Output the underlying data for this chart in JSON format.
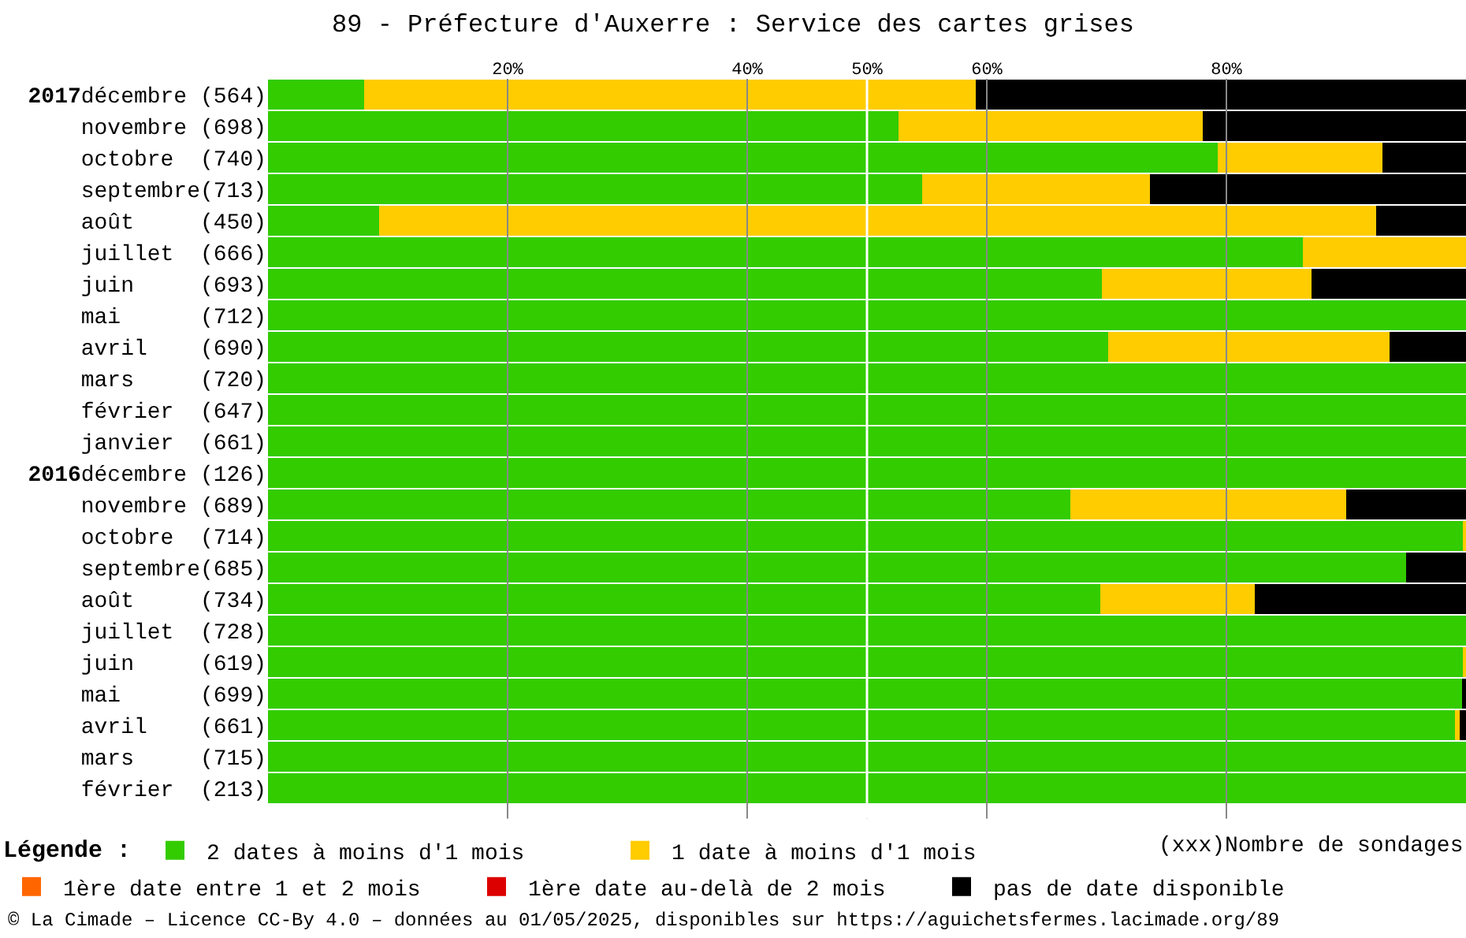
{
  "chart_data": {
    "type": "bar",
    "orientation": "horizontal",
    "stacked": true,
    "title": "89 - Préfecture d'Auxerre : Service des cartes grises",
    "categories": [
      "2017décembre (564)",
      "novembre (698)",
      "octobre (740)",
      "septembre(713)",
      "août (450)",
      "juillet (666)",
      "juin (693)",
      "mai (712)",
      "avril (690)",
      "mars (720)",
      "février (647)",
      "janvier (661)",
      "2016décembre (126)",
      "novembre (689)",
      "octobre (714)",
      "septembre(685)",
      "août (734)",
      "juillet (728)",
      "juin (619)",
      "mai (699)",
      "avril (661)",
      "mars (715)",
      "février (213)"
    ],
    "series": [
      {
        "name": "2 dates à moins d'1 mois",
        "color": "#33cc00",
        "values": [
          8.0,
          52.6,
          79.3,
          54.6,
          9.3,
          86.4,
          69.6,
          100,
          70.1,
          100,
          100,
          100,
          100,
          67.0,
          99.8,
          95.0,
          69.5,
          100,
          99.8,
          99.7,
          99.1,
          100,
          100
        ]
      },
      {
        "name": "1 date à moins d'1 mois",
        "color": "#ffcc00",
        "values": [
          51.1,
          25.4,
          13.7,
          19.0,
          83.2,
          13.6,
          17.5,
          0,
          23.5,
          0,
          0,
          0,
          0,
          23.0,
          0.2,
          0,
          12.9,
          0,
          0.2,
          0,
          0.4,
          0,
          0
        ]
      },
      {
        "name": "1ère date entre 1 et 2 mois",
        "color": "#ff6600",
        "values": [
          0,
          0,
          0,
          0,
          0,
          0,
          0,
          0,
          0,
          0,
          0,
          0,
          0,
          0,
          0,
          0,
          0,
          0,
          0,
          0,
          0,
          0,
          0
        ]
      },
      {
        "name": "1ère date au-delà de 2 mois",
        "color": "#dd0000",
        "values": [
          0,
          0,
          0,
          0,
          0,
          0,
          0,
          0,
          0,
          0,
          0,
          0,
          0,
          0,
          0,
          0,
          0,
          0,
          0,
          0,
          0,
          0,
          0
        ]
      },
      {
        "name": "pas de date disponible",
        "color": "#000000",
        "values": [
          40.9,
          22.0,
          7.0,
          26.4,
          7.5,
          0,
          12.9,
          0,
          6.4,
          0,
          0,
          0,
          0,
          10.0,
          0,
          5.0,
          17.6,
          0,
          0,
          0.3,
          0.5,
          0,
          0
        ]
      }
    ],
    "xlim": [
      0,
      100
    ],
    "xticks": [
      {
        "value": 20,
        "label": "20%"
      },
      {
        "value": 40,
        "label": "40%"
      },
      {
        "value": 50,
        "label": "50%"
      },
      {
        "value": 60,
        "label": "60%"
      },
      {
        "value": 80,
        "label": "80%"
      }
    ],
    "grid": "x",
    "ref_lines": [
      {
        "axis": "x",
        "value": 50,
        "label": null,
        "color": "#ffffff"
      }
    ],
    "legend": "bottom",
    "legend_title": "Légende :",
    "annotations": [
      "(xxx)Nombre de sondages",
      "© La Cimade – Licence CC-By 4.0 – données au 01/05/2025, disponibles sur https://aguichetsfermes.lacimade.org/89"
    ]
  }
}
